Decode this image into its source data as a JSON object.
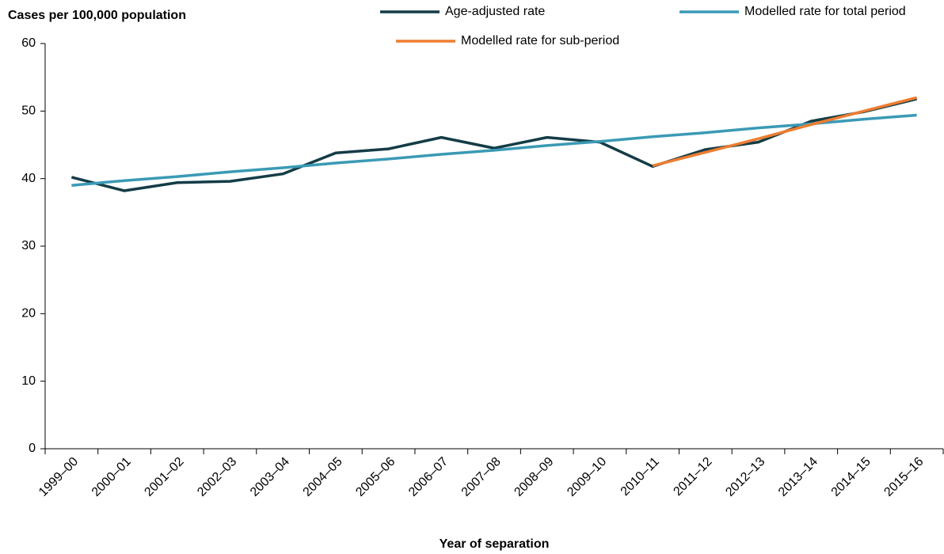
{
  "chart_data": {
    "type": "line",
    "y_label": "Cases per 100,000 population",
    "x_label": "Year of separation",
    "categories": [
      "1999–00",
      "2000–01",
      "2001–02",
      "2002–03",
      "2003–04",
      "2004–05",
      "2005–06",
      "2006–07",
      "2007–08",
      "2008–09",
      "2009–10",
      "2010–11",
      "2011–12",
      "2012–13",
      "2013–14",
      "2014–15",
      "2015–16"
    ],
    "series": [
      {
        "name": "Age-adjusted rate",
        "color": "#143c46",
        "values": [
          40.2,
          38.2,
          39.4,
          39.6,
          40.7,
          43.8,
          44.4,
          46.1,
          44.5,
          46.1,
          45.4,
          41.8,
          44.3,
          45.4,
          48.5,
          49.9,
          51.8
        ]
      },
      {
        "name": "Modelled rate for total period",
        "color": "#3a9ab5",
        "values": [
          39.0,
          39.7,
          40.3,
          41.0,
          41.6,
          42.3,
          42.9,
          43.6,
          44.2,
          44.9,
          45.5,
          46.2,
          46.8,
          47.5,
          48.1,
          48.8,
          49.4
        ]
      },
      {
        "name": "Modelled rate for sub-period",
        "color": "#ed7d31",
        "values": [
          null,
          null,
          null,
          null,
          null,
          null,
          null,
          null,
          null,
          null,
          null,
          41.9,
          43.9,
          45.9,
          48.0,
          50.0,
          52.0
        ]
      }
    ],
    "ylim": [
      0,
      60
    ],
    "yticks": [
      0,
      10,
      20,
      30,
      40,
      50,
      60
    ],
    "grid": false,
    "legend": "top"
  }
}
